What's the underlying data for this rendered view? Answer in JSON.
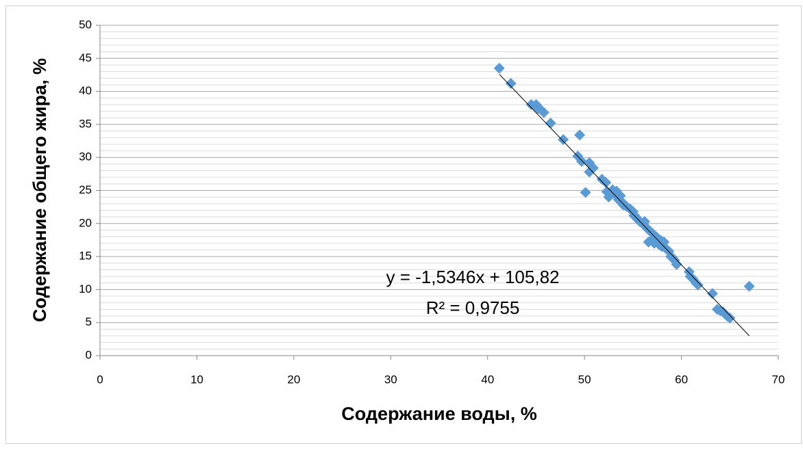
{
  "chart_data": {
    "type": "scatter",
    "x_label": "Содержание воды, %",
    "y_label": "Содержание общего жира, %",
    "xlim": [
      0,
      70
    ],
    "xticks": [
      0,
      10,
      20,
      30,
      40,
      50,
      60,
      70
    ],
    "ylim": [
      0,
      50
    ],
    "yticks": [
      0,
      5,
      10,
      15,
      20,
      25,
      30,
      35,
      40,
      45,
      50
    ],
    "grid": true,
    "minor_grid_divisions": 5,
    "color": "#5b9bd5",
    "x": [
      41.2,
      42.4,
      44.5,
      45,
      45.2,
      45.5,
      45.8,
      46.5,
      47.8,
      49.5,
      49.3,
      49.7,
      50.5,
      50.5,
      50.9,
      50.1,
      51.8,
      52.2,
      52.3,
      52.5,
      52.9,
      53.2,
      53.3,
      53.5,
      53.7,
      53.9,
      54,
      54.3,
      54.7,
      55,
      55.1,
      55.3,
      55.5,
      55.7,
      56,
      56.2,
      56.3,
      56.5,
      56.6,
      56.8,
      57,
      57.1,
      57.2,
      57.4,
      57.5,
      57.7,
      57.9,
      58,
      58.2,
      58.4,
      58.7,
      58.9,
      59.1,
      59.3,
      59.5,
      60.8,
      60.9,
      61.2,
      61.5,
      61.7,
      63.2,
      63.7,
      64,
      64.3,
      64.7,
      65,
      67
    ],
    "values": [
      43.5,
      41.2,
      38,
      38,
      37.4,
      37.2,
      36.8,
      35.2,
      32.7,
      33.4,
      30.2,
      29.4,
      29.2,
      27.8,
      28.4,
      24.7,
      26.7,
      26.2,
      24.8,
      24,
      25.1,
      24.3,
      24.9,
      23.6,
      24.2,
      23.2,
      22.8,
      22.6,
      22.2,
      21.8,
      21.2,
      21,
      20.6,
      20.3,
      20,
      20.3,
      19.5,
      19.2,
      17.2,
      18.8,
      18.5,
      17.7,
      17,
      18,
      17.5,
      16.8,
      17.4,
      16.5,
      17.2,
      16.2,
      15.8,
      15,
      14.8,
      14.4,
      13.8,
      12.7,
      12,
      11.6,
      11,
      10.7,
      9.4,
      7,
      6.8,
      6.6,
      6,
      5.7,
      10.5
    ],
    "trendline": {
      "slope": -1.5346,
      "intercept": 105.82,
      "x_range": [
        41.2,
        67
      ],
      "equation": "y = -1,5346x + 105,82",
      "r2": "R² = 0,9755"
    }
  }
}
